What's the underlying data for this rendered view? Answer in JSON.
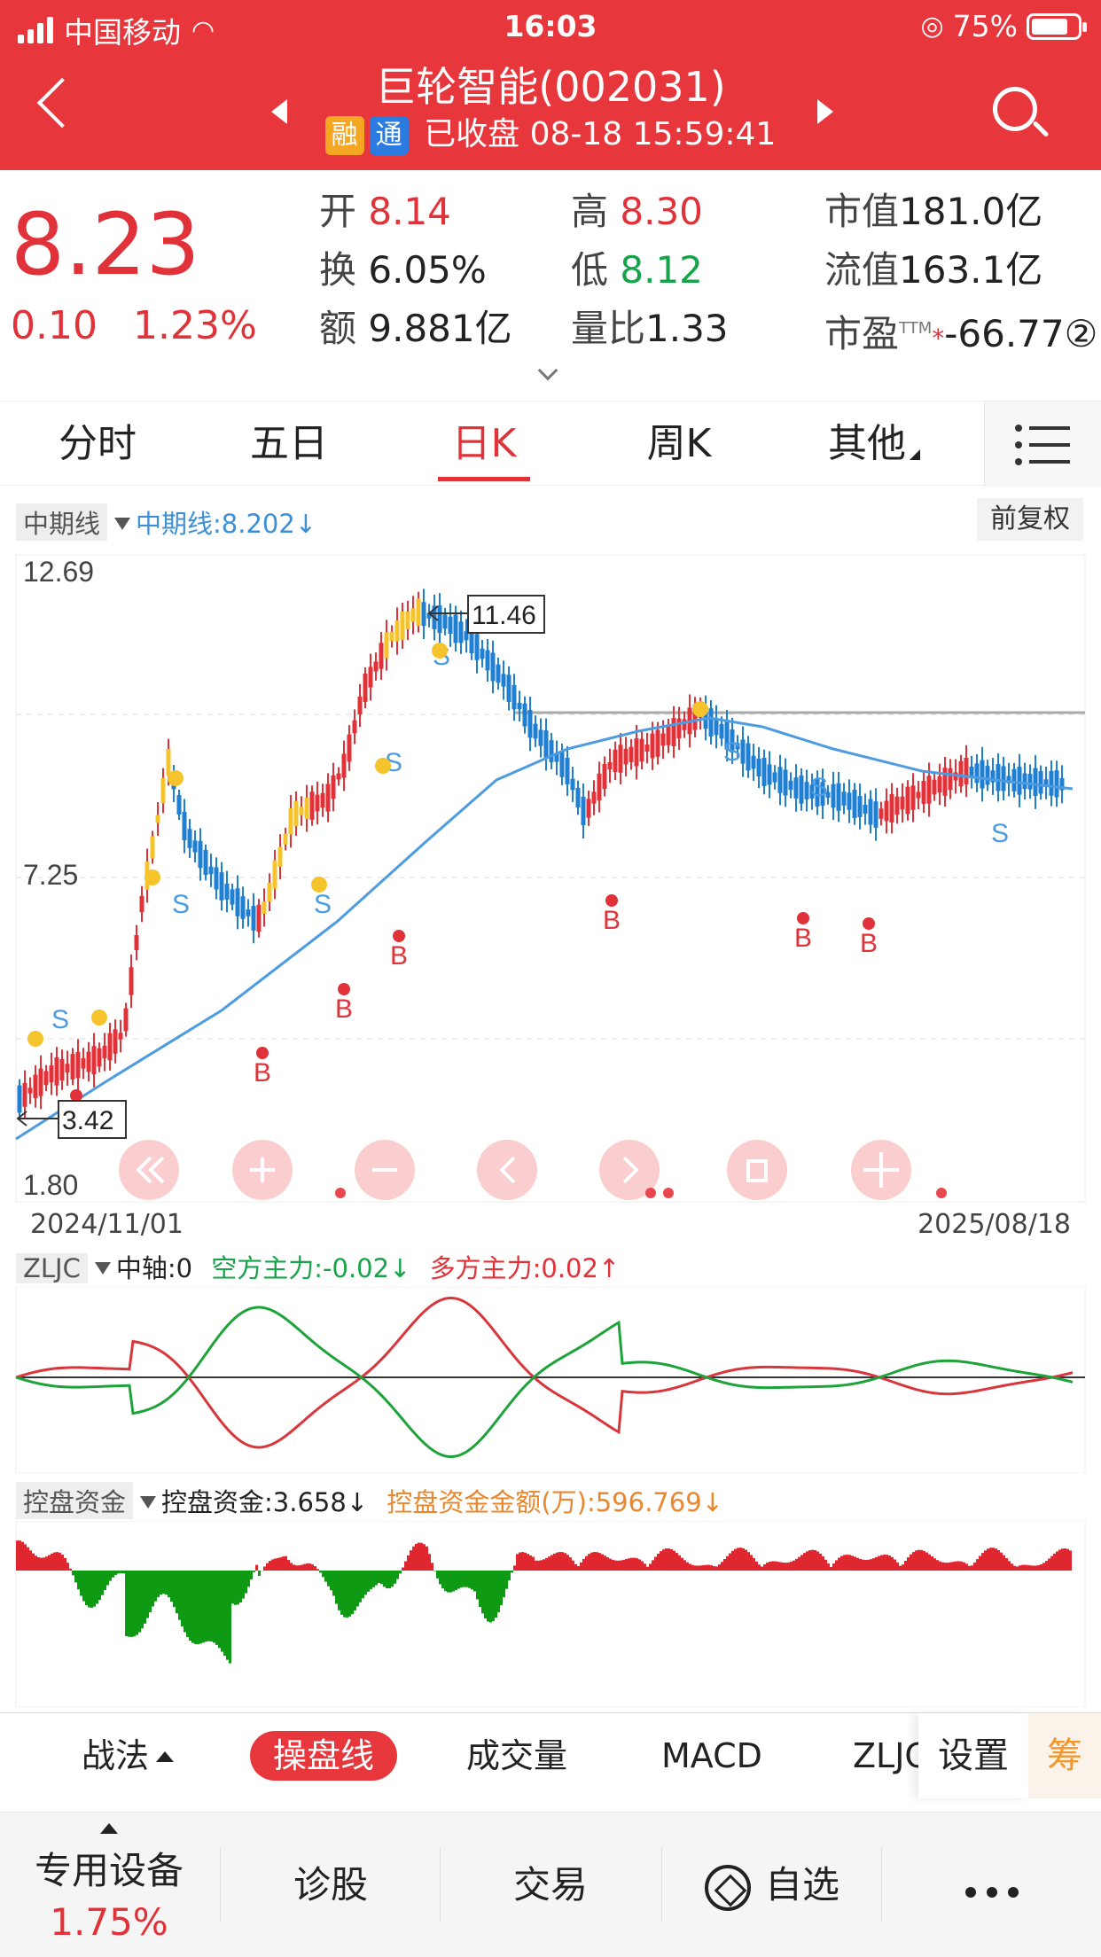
{
  "status_bar": {
    "carrier": "中国移动",
    "time": "16:03",
    "battery": "75%"
  },
  "header": {
    "title": "巨轮智能(002031)",
    "badge_margin": "融",
    "badge_connect": "通",
    "status": "已收盘 08-18 15:59:41"
  },
  "quote": {
    "price": "8.23",
    "change": "0.10",
    "change_pct": "1.23%",
    "open_label": "开",
    "open": "8.14",
    "high_label": "高",
    "high": "8.30",
    "turnover_label": "换",
    "turnover": "6.05%",
    "low_label": "低",
    "low": "8.12",
    "amount_label": "额",
    "amount": "9.881亿",
    "volume_ratio_label": "量比",
    "volume_ratio": "1.33",
    "mktcap_label": "市值",
    "mktcap": "181.0亿",
    "float_label": "流值",
    "float": "163.1亿",
    "pe_label": "市盈",
    "pe_sup": "TTM",
    "pe": "-66.77②"
  },
  "tabs": [
    "分时",
    "五日",
    "日K",
    "周K",
    "其他"
  ],
  "main_chart": {
    "indicator_tag": "中期线",
    "indicator_value": "中期线:8.202↓",
    "adjust": "前复权",
    "y_top": "12.69",
    "y_mid": "7.25",
    "y_bottom": "1.80",
    "max_note": "11.46",
    "min_note": "3.42",
    "date_start": "2024/11/01",
    "date_end": "2025/08/18",
    "buy_mark": "B",
    "sell_mark": "S"
  },
  "zljc": {
    "tag": "ZLJC",
    "axis": "中轴:0",
    "bear": "空方主力:-0.02↓",
    "bull": "多方主力:0.02↑"
  },
  "kpzj": {
    "tag": "控盘资金",
    "value": "控盘资金:3.658↓",
    "amount": "控盘资金金额(万):596.769↓"
  },
  "toolbar": {
    "items": [
      "战法",
      "操盘线",
      "成交量",
      "MACD",
      "ZLJC"
    ],
    "settings": "设置",
    "chou": "筹"
  },
  "nav": {
    "sector": "专用设备",
    "sector_pct": "1.75%",
    "diagnose": "诊股",
    "trade": "交易",
    "watchlist": "自选"
  },
  "colors": {
    "red": "#e03238",
    "green": "#16a34a",
    "blue": "#1f7fd0",
    "yellow": "#f5c32c",
    "header": "#e8373c"
  }
}
